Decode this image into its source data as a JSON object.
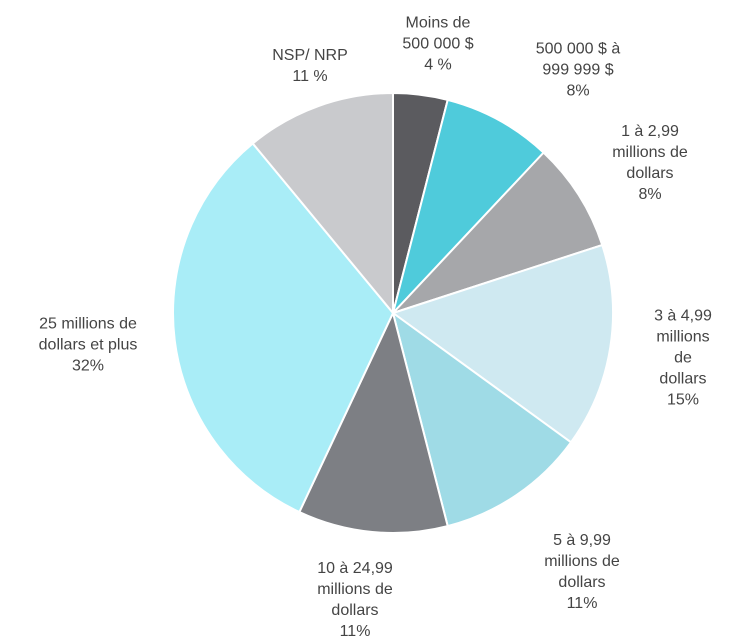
{
  "chart_data": {
    "type": "pie",
    "categories": [
      "Moins de\n500 000 $",
      "500 000 $ à\n999 999 $",
      "1 à 2,99\nmillions de\ndollars",
      "3 à 4,99\nmillions de\ndollars",
      "5 à 9,99\nmillions de\ndollars",
      "10 à 24,99\nmillions de\ndollars",
      "25 millions de\ndollars et plus",
      "NSP/ NRP"
    ],
    "values": [
      4,
      8,
      8,
      15,
      11,
      11,
      32,
      11
    ],
    "value_labels": [
      "4 %",
      "8%",
      "8%",
      "15%",
      "11%",
      "11%",
      "32%",
      "11 %"
    ],
    "colors": [
      "#5b5b5f",
      "#4fcbdb",
      "#a6a7aa",
      "#cfe9f1",
      "#9fdbe6",
      "#7d7f84",
      "#a9edf7",
      "#c9cacd"
    ]
  }
}
